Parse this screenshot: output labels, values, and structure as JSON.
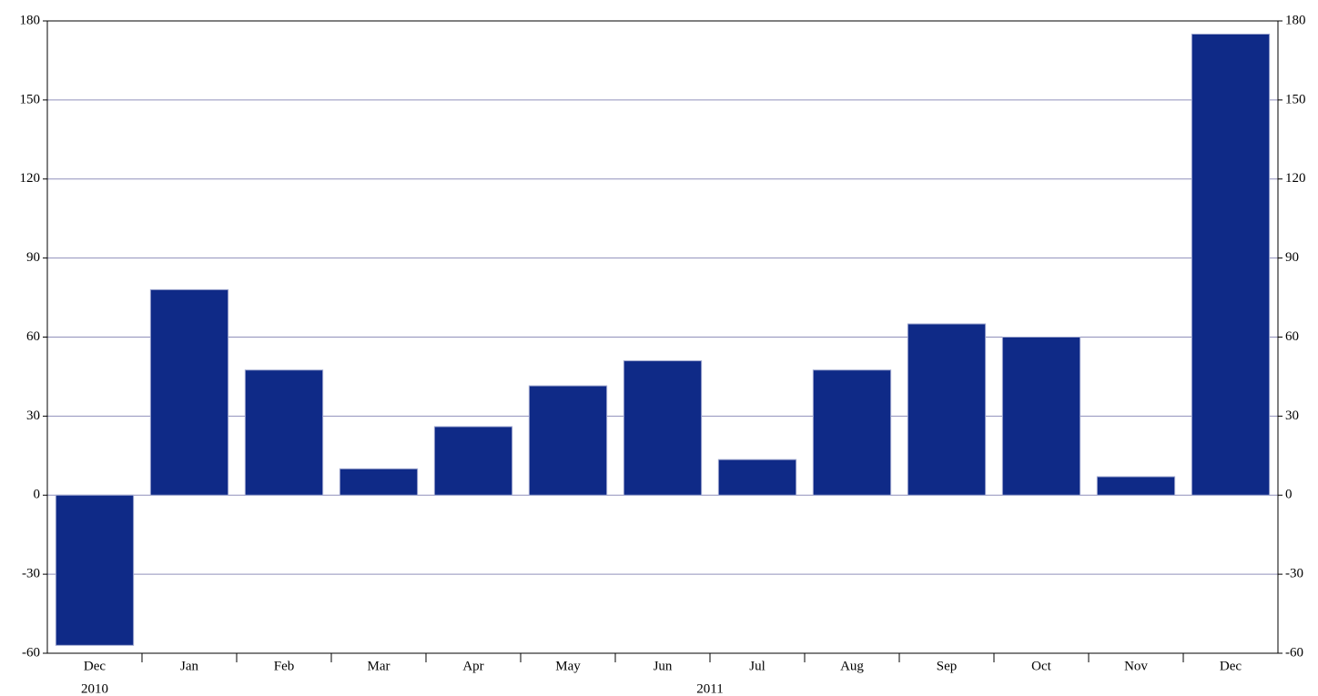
{
  "chart_data": {
    "type": "bar",
    "categories": [
      "Dec",
      "Jan",
      "Feb",
      "Mar",
      "Apr",
      "May",
      "Jun",
      "Jul",
      "Aug",
      "Sep",
      "Oct",
      "Nov",
      "Dec"
    ],
    "groups": [
      {
        "label": "2010",
        "count": 1
      },
      {
        "label": "2011",
        "count": 12
      }
    ],
    "values": [
      -57,
      78,
      47.5,
      10,
      26,
      41.5,
      51,
      13.5,
      47.5,
      65,
      60,
      7,
      175
    ],
    "color": "#0f2a87",
    "ylim": [
      -60,
      180
    ],
    "yticks": [
      -60,
      -30,
      0,
      30,
      60,
      90,
      120,
      150,
      180
    ],
    "grid": true,
    "mirror_y_axis": true
  }
}
